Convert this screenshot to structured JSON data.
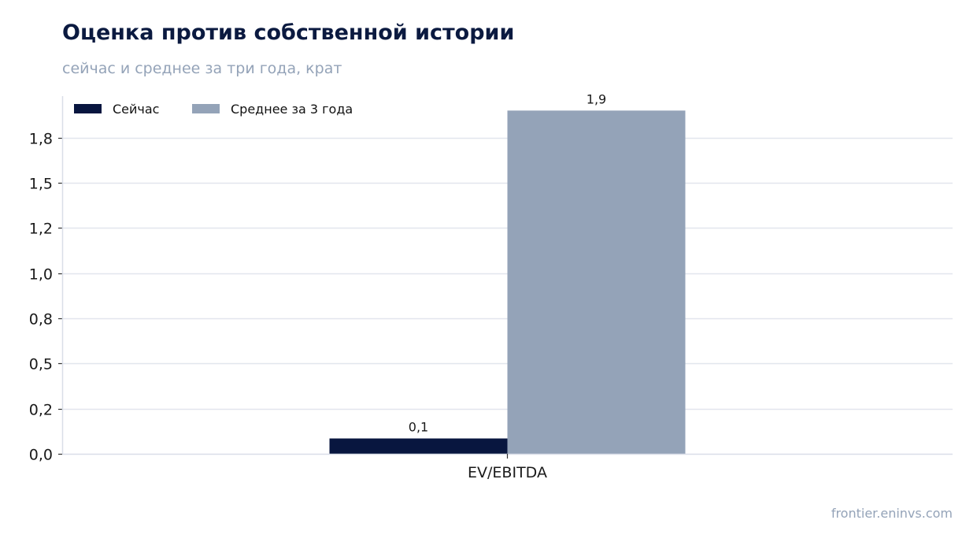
{
  "header": {
    "title": "Оценка против собственной истории",
    "subtitle": "сейчас и среднее за три года, крат"
  },
  "footer": {
    "source": "frontier.eninvs.com"
  },
  "colors": {
    "current": "#08163f",
    "average": "#94a3b8",
    "grid": "#e2e6ee",
    "axis": "#d9dee8"
  },
  "chart_data": {
    "type": "bar",
    "categories": [
      "EV/EBITDA"
    ],
    "series": [
      {
        "name": "Сейчас",
        "values": [
          0.085
        ],
        "label": "0,1",
        "color": "#08163f"
      },
      {
        "name": "Среднее за 3 года",
        "values": [
          1.9
        ],
        "label": "1,9",
        "color": "#94a3b8"
      }
    ],
    "ylim": [
      0,
      1.98
    ],
    "yticks": [
      0.0,
      0.25,
      0.5,
      0.75,
      1.0,
      1.25,
      1.5,
      1.75
    ],
    "ytick_labels": [
      "0,0",
      "0,2",
      "0,5",
      "0,8",
      "1,0",
      "1,2",
      "1,5",
      "1,8"
    ],
    "grid": true,
    "legend": "top-left",
    "xlabel": "",
    "ylabel": ""
  }
}
